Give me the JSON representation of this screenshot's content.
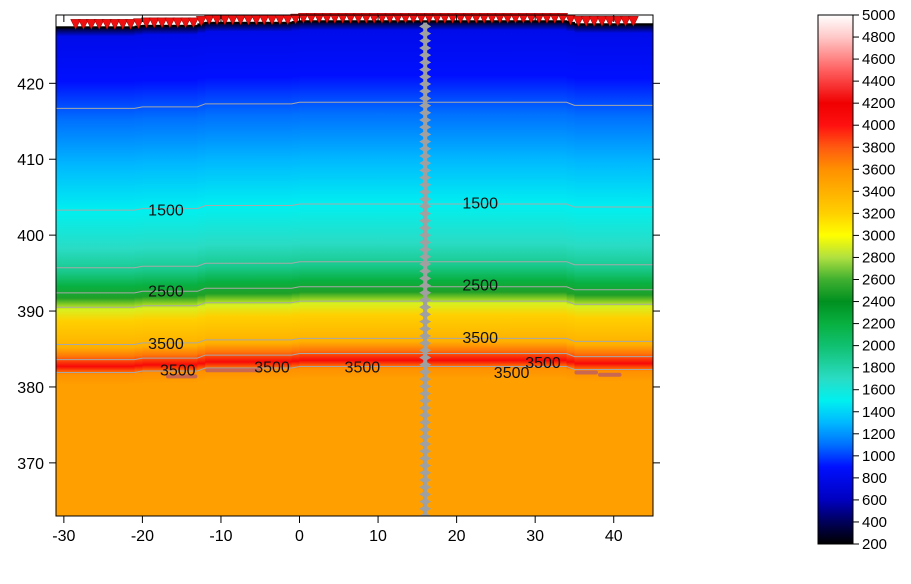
{
  "chart_data": {
    "type": "heatmap",
    "x_ticks": [
      -30,
      -20,
      -10,
      0,
      10,
      20,
      30,
      40
    ],
    "y_ticks": [
      370,
      380,
      390,
      400,
      410,
      420
    ],
    "xlim": [
      -31,
      45
    ],
    "ylim": [
      363,
      429
    ],
    "colorbar": {
      "ticks": [
        200,
        400,
        600,
        800,
        1000,
        1200,
        1400,
        1600,
        1800,
        2000,
        2200,
        2400,
        2600,
        2800,
        3000,
        3200,
        3400,
        3600,
        3800,
        4000,
        4200,
        4400,
        4600,
        4800,
        5000
      ],
      "range": [
        200,
        5000
      ],
      "stops": [
        {
          "value": 200,
          "color": "#000000"
        },
        {
          "value": 400,
          "color": "#00005a"
        },
        {
          "value": 600,
          "color": "#0000c0"
        },
        {
          "value": 900,
          "color": "#0010ff"
        },
        {
          "value": 1100,
          "color": "#0070ff"
        },
        {
          "value": 1300,
          "color": "#00b8ff"
        },
        {
          "value": 1500,
          "color": "#00f0f0"
        },
        {
          "value": 1700,
          "color": "#2adcc4"
        },
        {
          "value": 2000,
          "color": "#10c070"
        },
        {
          "value": 2200,
          "color": "#08b040"
        },
        {
          "value": 2400,
          "color": "#009020"
        },
        {
          "value": 2600,
          "color": "#40b030"
        },
        {
          "value": 2800,
          "color": "#b0e040"
        },
        {
          "value": 3000,
          "color": "#ffff00"
        },
        {
          "value": 3200,
          "color": "#ffd000"
        },
        {
          "value": 3400,
          "color": "#ffb000"
        },
        {
          "value": 3600,
          "color": "#ff9000"
        },
        {
          "value": 3800,
          "color": "#ff5a10"
        },
        {
          "value": 4000,
          "color": "#ff1010"
        },
        {
          "value": 4200,
          "color": "#f00000"
        },
        {
          "value": 4500,
          "color": "#ff6060"
        },
        {
          "value": 4800,
          "color": "#ffc8c8"
        },
        {
          "value": 5000,
          "color": "#ffffff"
        }
      ]
    },
    "velocity_profile": [
      {
        "elev": 428.3,
        "velocity": 200
      },
      {
        "elev": 427.0,
        "velocity": 800
      },
      {
        "elev": 421.0,
        "velocity": 900
      },
      {
        "elev": 416.0,
        "velocity": 1100
      },
      {
        "elev": 410.0,
        "velocity": 1300
      },
      {
        "elev": 404.0,
        "velocity": 1500
      },
      {
        "elev": 399.0,
        "velocity": 1700
      },
      {
        "elev": 396.0,
        "velocity": 1900
      },
      {
        "elev": 394.0,
        "velocity": 2200
      },
      {
        "elev": 392.5,
        "velocity": 2500
      },
      {
        "elev": 391.0,
        "velocity": 2900
      },
      {
        "elev": 389.5,
        "velocity": 3200
      },
      {
        "elev": 386.0,
        "velocity": 3400
      },
      {
        "elev": 384.8,
        "velocity": 3700
      },
      {
        "elev": 383.5,
        "velocity": 4100
      },
      {
        "elev": 382.5,
        "velocity": 3600
      },
      {
        "elev": 381.0,
        "velocity": 3500
      },
      {
        "elev": 363.0,
        "velocity": 3500
      }
    ],
    "surface_offsets": [
      {
        "x": -31,
        "dy": -0.8
      },
      {
        "x": -21,
        "dy": -0.8
      },
      {
        "x": -20,
        "dy": -0.6
      },
      {
        "x": -13,
        "dy": -0.6
      },
      {
        "x": -12,
        "dy": -0.2
      },
      {
        "x": -1,
        "dy": -0.2
      },
      {
        "x": 0,
        "dy": 0.0
      },
      {
        "x": 34,
        "dy": 0.0
      },
      {
        "x": 35,
        "dy": -0.4
      },
      {
        "x": 45,
        "dy": -0.4
      }
    ],
    "contours": [
      {
        "name": "iso-a",
        "base": 416.7
      },
      {
        "name": "iso-b",
        "base": 403.3
      },
      {
        "name": "iso-c",
        "base": 395.7
      },
      {
        "name": "iso-d",
        "base": 392.4
      },
      {
        "name": "iso-e",
        "base": 390.5
      },
      {
        "name": "iso-f",
        "base": 385.6
      },
      {
        "name": "iso-g",
        "base": 383.6
      },
      {
        "name": "iso-h",
        "base": 381.9
      }
    ],
    "contour_labels": [
      {
        "text": "1500",
        "x": -17,
        "y": 403.4
      },
      {
        "text": "1500",
        "x": 23,
        "y": 404.3
      },
      {
        "text": "2500",
        "x": -17,
        "y": 392.7
      },
      {
        "text": "2500",
        "x": 23,
        "y": 393.5
      },
      {
        "text": "3500",
        "x": -17,
        "y": 385.8
      },
      {
        "text": "3500",
        "x": 23,
        "y": 386.6
      },
      {
        "text": "3500",
        "x": -15.5,
        "y": 382.3
      },
      {
        "text": "3500",
        "x": -3.5,
        "y": 382.7
      },
      {
        "text": "3500",
        "x": 8,
        "y": 382.7
      },
      {
        "text": "3500",
        "x": 27,
        "y": 382.0
      },
      {
        "text": "3500",
        "x": 31,
        "y": 383.3
      }
    ],
    "borehole_x": 16,
    "sensor_x_range": [
      -28.5,
      43
    ]
  }
}
